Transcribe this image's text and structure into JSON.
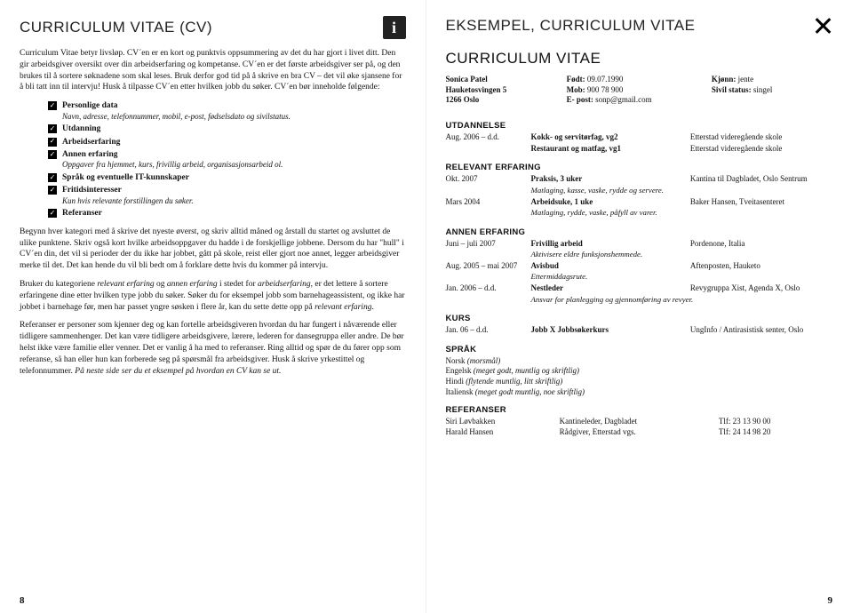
{
  "left": {
    "header": "CURRICULUM VITAE (CV)",
    "intro": "Curriculum Vitae betyr livsløp. CV´en er en kort og punktvis oppsummering av det du har gjort i livet ditt. Den gir arbeidsgiver oversikt over din arbeidserfaring og kompetanse. CV´en er det første arbeidsgiver ser på, og den brukes til å sortere søknadene som skal leses. Bruk derfor god tid på å skrive en bra CV – det vil øke sjansene for å bli tatt inn til intervju! Husk å tilpasse CV´en etter hvilken jobb du søker. CV´en bør inneholde følgende:",
    "checks": [
      {
        "label": "Personlige data",
        "sub": "Navn, adresse, telefonnummer, mobil, e-post, fødselsdato og sivilstatus."
      },
      {
        "label": "Utdanning",
        "sub": ""
      },
      {
        "label": "Arbeidserfaring",
        "sub": ""
      },
      {
        "label": "Annen erfaring",
        "sub": "Oppgaver fra hjemmet, kurs, frivillig arbeid, organisasjonsarbeid ol."
      },
      {
        "label": "Språk og eventuelle IT-kunnskaper",
        "sub": ""
      },
      {
        "label": "Fritidsinteresser",
        "sub": "Kun hvis relevante forstillingen du søker."
      },
      {
        "label": "Referanser",
        "sub": ""
      }
    ],
    "para2": "Begynn hver kategori med å skrive det nyeste øverst, og skriv alltid måned og årstall du startet og avsluttet de ulike punktene. Skriv også kort hvilke arbeidsoppgaver du hadde i de forskjellige jobbene. Dersom du har \"hull\" i CV´en din, det vil si perioder der du ikke har jobbet, gått på skole, reist eller gjort noe annet, legger arbeidsgiver merke til det. Det kan hende du vil bli bedt om å forklare dette hvis du kommer på intervju.",
    "para3a": "Bruker du kategoriene ",
    "para3_rel": "relevant erfaring",
    "para3b": " og ",
    "para3_ann": "annen erfaring",
    "para3c": " i stedet for ",
    "para3_arb": "arbeidserfaring",
    "para3d": ", er det lettere å sortere erfaringene dine etter hvilken type jobb du søker. Søker du for eksempel jobb som barnehageassistent, og ikke har jobbet i barnehage før, men har passet yngre søsken i flere år, kan du sette dette opp på ",
    "para3_rel2": "relevant erfaring",
    "para3e": ".",
    "para4a": "Referanser er personer som kjenner deg og kan fortelle arbeidsgiveren hvordan du har fungert i nåværende eller tidligere sammenhenger. Det kan være tidligere arbeidsgivere, lærere, lederen for dansegruppa eller andre. De bør helst ikke være familie eller venner. Det er vanlig å ha med to referanser. Ring alltid og spør de du fører opp som referanse, så han eller hun kan forberede seg på spørsmål fra arbeidsgiver. Husk å skrive yrkestittel og telefonnummer. ",
    "para4b": "På neste side ser du et eksempel på hvordan en CV kan se ut.",
    "page_num": "8"
  },
  "right": {
    "header": "EKSEMPEL, CURRICULUM VITAE",
    "cv_title": "CURRICULUM VITAE",
    "personal": {
      "name": "Sonica Patel",
      "addr": "Hauketosvingen 5",
      "city": "1266 Oslo",
      "born_lbl": "Født:",
      "born": "09.07.1990",
      "mob_lbl": "Mob:",
      "mob": "900 78 900",
      "email_lbl": "E- post:",
      "email": "sonp@gmail.com",
      "gender_lbl": "Kjønn:",
      "gender": "jente",
      "civil_lbl": "Sivil status:",
      "civil": "singel"
    },
    "edu_hdr": "UTDANNELSE",
    "edu": [
      {
        "when": "Aug. 2006 – d.d.",
        "what": "Kokk- og servitørfag, vg2",
        "where": "Etterstad videregående skole"
      },
      {
        "when": "",
        "what": "Restaurant og matfag, vg1",
        "where": "Etterstad videregående skole"
      }
    ],
    "rel_hdr": "RELEVANT ERFARING",
    "rel": [
      {
        "when": "Okt. 2007",
        "what": "Praksis, 3 uker",
        "where": "Kantina til Dagbladet, Oslo Sentrum",
        "detail": "Matlaging, kasse, vaske, rydde og servere."
      },
      {
        "when": "Mars 2004",
        "what": "Arbeidsuke, 1 uke",
        "where": "Baker Hansen, Tveitasenteret",
        "detail": "Matlaging, rydde, vaske, påfyll av varer."
      }
    ],
    "ann_hdr": "ANNEN ERFARING",
    "ann": [
      {
        "when": "Juni – juli 2007",
        "what": "Frivillig arbeid",
        "where": "Pordenone, Italia",
        "detail": "Aktivisere eldre funksjonshemmede."
      },
      {
        "when": "Aug. 2005 – mai 2007",
        "what": "Avisbud",
        "where": "Aftenposten, Hauketo",
        "detail": "Ettermiddagsrute."
      },
      {
        "when": "Jan. 2006 – d.d.",
        "what": "Nestleder",
        "where": "Revygruppa Xist, Agenda X, Oslo",
        "detail": "Ansvar for planlegging og gjennomføring av revyer."
      }
    ],
    "kurs_hdr": "KURS",
    "kurs": [
      {
        "when": "Jan. 06 – d.d.",
        "what": "Jobb X Jobbsøkerkurs",
        "where": "UngInfo / Antirasistisk senter, Oslo"
      }
    ],
    "sprak_hdr": "SPRÅK",
    "sprak": [
      {
        "lang": "Norsk",
        "note": "(morsmål)"
      },
      {
        "lang": "Engelsk",
        "note": "(meget godt, muntlig og skriftlig)"
      },
      {
        "lang": "Hindi",
        "note": "(flytende muntlig, litt skriftlig)"
      },
      {
        "lang": "Italiensk",
        "note": "(meget godt muntlig, noe skriftlig)"
      }
    ],
    "ref_hdr": "REFERANSER",
    "refs": [
      {
        "name": "Siri Løvbakken",
        "role": "Kantineleder, Dagbladet",
        "tlf": "Tlf: 23 13 90 00"
      },
      {
        "name": "Harald Hansen",
        "role": "Rådgiver, Etterstad vgs.",
        "tlf": "Tlf: 24 14 98 20"
      }
    ],
    "page_num": "9"
  }
}
